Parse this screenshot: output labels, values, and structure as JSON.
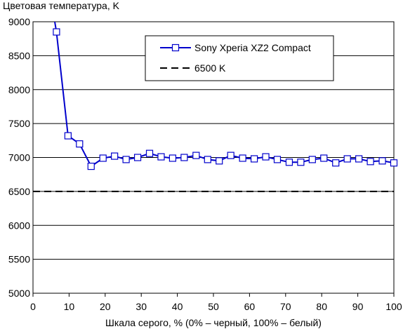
{
  "chart_data": {
    "type": "line",
    "title": "Цветовая температура, K",
    "xlabel": "Шкала серого, % (0% – черный, 100% – белый)",
    "ylabel": "",
    "xlim": [
      0,
      100
    ],
    "ylim": [
      5000,
      9000
    ],
    "x_ticks": [
      "0",
      "10",
      "20",
      "30",
      "40",
      "50",
      "60",
      "70",
      "80",
      "90",
      "100"
    ],
    "y_ticks": [
      "5000",
      "5500",
      "6000",
      "6500",
      "7000",
      "7500",
      "8000",
      "8500",
      "9000"
    ],
    "grid": "horizontal",
    "legend": "top-right",
    "series": [
      {
        "name": "Sony Xperia XZ2 Compact",
        "color": "#0000cc",
        "marker": "square",
        "x": [
          5.4,
          6.5,
          9.7,
          12.9,
          16.1,
          19.4,
          22.6,
          25.8,
          29.0,
          32.3,
          35.5,
          38.7,
          41.9,
          45.2,
          48.4,
          51.6,
          54.8,
          58.1,
          61.3,
          64.5,
          67.7,
          71.0,
          74.2,
          77.4,
          80.6,
          83.9,
          87.1,
          90.3,
          93.5,
          96.8,
          100
        ],
        "y": [
          9200,
          8850,
          7320,
          7200,
          6870,
          6990,
          7020,
          6970,
          7000,
          7060,
          7010,
          6990,
          7000,
          7030,
          6970,
          6950,
          7030,
          6990,
          6980,
          7010,
          6970,
          6930,
          6930,
          6970,
          6990,
          6920,
          6980,
          6980,
          6940,
          6950,
          6920
        ]
      },
      {
        "name": "6500 K",
        "color": "#000000",
        "style": "dashed",
        "x": [
          0,
          100
        ],
        "y": [
          6500,
          6500
        ]
      }
    ]
  }
}
